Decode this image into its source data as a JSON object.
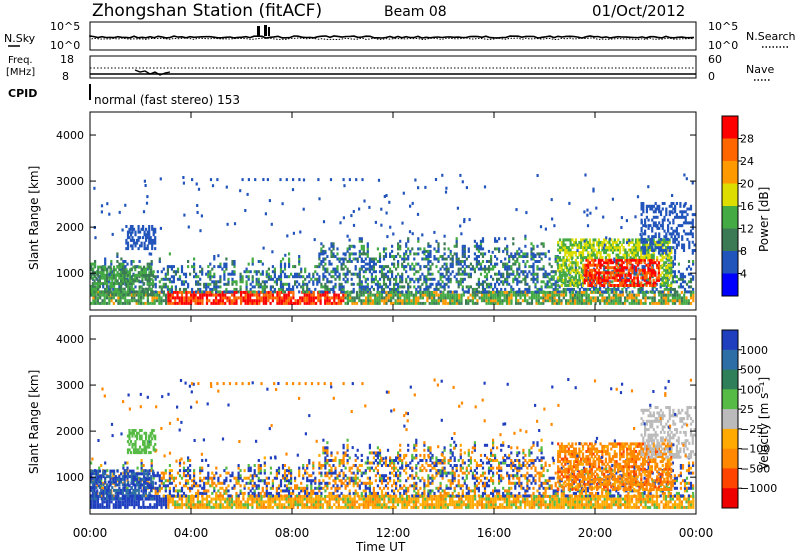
{
  "header": {
    "station": "Zhongshan Station (fitACF)",
    "beam": "Beam 08",
    "date": "01/Oct/2012"
  },
  "top_panels": {
    "nsky_label": "N.Sky",
    "nsky_ticks": [
      "10^5",
      "10^0"
    ],
    "nsearch_label": "N.Search",
    "nsearch_ticks": [
      "10^5",
      "10^0"
    ],
    "freq_label_1": "Freq.",
    "freq_label_2": "[MHz]",
    "freq_ticks": [
      "18",
      "8"
    ],
    "nave_label": "Nave",
    "nave_ticks": [
      "60",
      "0"
    ],
    "cpid_label": "CPID",
    "cpid_value": "normal (fast stereo) 153"
  },
  "chart_data": [
    {
      "type": "heatmap",
      "name": "power-panel",
      "xlabel": "",
      "ylabel": "Slant Range [km]",
      "ylim": [
        200,
        4500
      ],
      "yticks": [
        "1000",
        "2000",
        "3000",
        "4000"
      ],
      "xlim": [
        0,
        24
      ],
      "colorbar": {
        "label": "Power [dB]",
        "ticks": [
          "4",
          "8",
          "12",
          "16",
          "20",
          "24",
          "28"
        ],
        "colors": [
          "#0000ff",
          "#2255bb",
          "#3b7a55",
          "#44aa44",
          "#dddd00",
          "#ff9900",
          "#ff6600",
          "#ff0000"
        ]
      }
    },
    {
      "type": "heatmap",
      "name": "velocity-panel",
      "xlabel": "Time UT",
      "ylabel": "Slant Range [km]",
      "ylim": [
        200,
        4500
      ],
      "yticks": [
        "1000",
        "2000",
        "3000",
        "4000"
      ],
      "xlim": [
        0,
        24
      ],
      "xticks": [
        "00:00",
        "04:00",
        "08:00",
        "12:00",
        "16:00",
        "20:00",
        "00:00"
      ],
      "colorbar": {
        "label": "Velocity [m s⁻¹]",
        "ticks": [
          "1000",
          "500",
          "100",
          "25",
          "−25",
          "−100",
          "−500",
          "−1000"
        ],
        "colors": [
          "#1f3fbf",
          "#2e6ea6",
          "#2f7f5a",
          "#55bb44",
          "#bbbbbb",
          "#ffaa00",
          "#ff8800",
          "#ff4400",
          "#ee0000"
        ]
      }
    }
  ]
}
